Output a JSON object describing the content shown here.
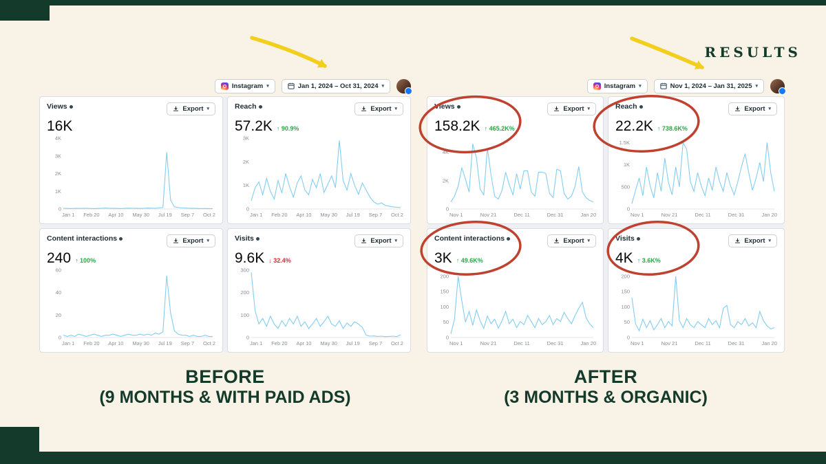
{
  "results_label": "RESULTS",
  "ui": {
    "export_label": "Export"
  },
  "colors": {
    "dark_green": "#143a2b",
    "cream": "#f8f3e6",
    "yellow_arrow": "#f2cf1d",
    "red_circle": "#bf4130",
    "chart_line": "#83cdf0",
    "delta_green": "#31a24c",
    "delta_red": "#e0243c"
  },
  "captions": {
    "before_title": "BEFORE",
    "before_subtitle": "(9 MONTHS & WITH PAID ADS)",
    "after_title": "AFTER",
    "after_subtitle": "(3 MONTHS & ORGANIC)"
  },
  "panels": [
    {
      "name": "before",
      "source": "Instagram",
      "date_range": "Jan 1, 2024 – Oct 31, 2024",
      "cards": [
        {
          "title": "Views",
          "value": "16K",
          "delta": "",
          "delta_color": "#31a24c"
        },
        {
          "title": "Reach",
          "value": "57.2K",
          "delta": "↑ 90.9%",
          "delta_color": "#31a24c"
        },
        {
          "title": "Content interactions",
          "value": "240",
          "delta": "↑ 100%",
          "delta_color": "#31a24c"
        },
        {
          "title": "Visits",
          "value": "9.6K",
          "delta": "↓ 32.4%",
          "delta_color": "#e0243c"
        }
      ]
    },
    {
      "name": "after",
      "source": "Instagram",
      "date_range": "Nov 1, 2024 – Jan 31, 2025",
      "cards": [
        {
          "title": "Views",
          "value": "158.2K",
          "delta": "↑ 465.2K%",
          "delta_color": "#31a24c"
        },
        {
          "title": "Reach",
          "value": "22.2K",
          "delta": "↑ 738.6K%",
          "delta_color": "#31a24c"
        },
        {
          "title": "Content interactions",
          "value": "3K",
          "delta": "↑ 49.6K%",
          "delta_color": "#31a24c"
        },
        {
          "title": "Visits",
          "value": "4K",
          "delta": "↑ 3.6K%",
          "delta_color": "#31a24c"
        }
      ]
    }
  ],
  "chart_data": [
    {
      "type": "line",
      "title": "Views (before)",
      "ylim": [
        0,
        4000
      ],
      "ymax": 4000,
      "yticks": [
        {
          "label": "0",
          "value": 0
        },
        {
          "label": "1K",
          "value": 1000
        },
        {
          "label": "2K",
          "value": 2000
        },
        {
          "label": "3K",
          "value": 3000
        },
        {
          "label": "4K",
          "value": 4000
        }
      ],
      "xticks": [
        "Jan 1",
        "Feb 20",
        "Apr 10",
        "May 30",
        "Jul 19",
        "Sep 7",
        "Oct 2"
      ],
      "values": [
        40,
        30,
        25,
        35,
        30,
        40,
        35,
        30,
        25,
        30,
        40,
        50,
        40,
        35,
        30,
        25,
        35,
        45,
        40,
        35,
        30,
        40,
        50,
        45,
        40,
        60,
        80,
        3200,
        500,
        120,
        80,
        60,
        50,
        40,
        35,
        30,
        25,
        30,
        25,
        20
      ]
    },
    {
      "type": "line",
      "title": "Reach (before)",
      "ylim": [
        0,
        3000
      ],
      "ymax": 3000,
      "yticks": [
        {
          "label": "0",
          "value": 0
        },
        {
          "label": "1K",
          "value": 1000
        },
        {
          "label": "2K",
          "value": 2000
        },
        {
          "label": "3K",
          "value": 3000
        }
      ],
      "xticks": [
        "Jan 1",
        "Feb 20",
        "Apr 10",
        "May 30",
        "Jul 19",
        "Sep 7",
        "Oct 2"
      ],
      "values": [
        350,
        900,
        1150,
        600,
        1300,
        750,
        420,
        1200,
        680,
        1500,
        950,
        500,
        1100,
        1400,
        800,
        600,
        1250,
        900,
        1500,
        700,
        1050,
        1400,
        900,
        2900,
        1200,
        800,
        1500,
        1000,
        620,
        1100,
        800,
        500,
        300,
        200,
        260,
        150,
        120,
        90,
        70,
        60
      ]
    },
    {
      "type": "line",
      "title": "Content interactions (before)",
      "ylim": [
        0,
        60
      ],
      "ymax": 60,
      "yticks": [
        {
          "label": "0",
          "value": 0
        },
        {
          "label": "20",
          "value": 20
        },
        {
          "label": "40",
          "value": 40
        },
        {
          "label": "60",
          "value": 60
        }
      ],
      "xticks": [
        "Jan 1",
        "Feb 20",
        "Apr 10",
        "May 30",
        "Jul 19",
        "Sep 7",
        "Oct 2"
      ],
      "values": [
        2,
        1,
        2,
        1,
        3,
        2,
        1,
        2,
        3,
        2,
        1,
        2,
        2,
        3,
        2,
        1,
        2,
        3,
        2,
        2,
        3,
        2,
        3,
        2,
        4,
        3,
        5,
        55,
        22,
        6,
        3,
        2,
        2,
        1,
        2,
        1,
        1,
        2,
        1,
        1
      ]
    },
    {
      "type": "line",
      "title": "Visits (before)",
      "ylim": [
        0,
        300
      ],
      "ymax": 300,
      "yticks": [
        {
          "label": "0",
          "value": 0
        },
        {
          "label": "100",
          "value": 100
        },
        {
          "label": "200",
          "value": 200
        },
        {
          "label": "300",
          "value": 300
        }
      ],
      "xticks": [
        "Jan 1",
        "Feb 20",
        "Apr 10",
        "May 30",
        "Jul 19",
        "Sep 7",
        "Oct 2"
      ],
      "values": [
        290,
        120,
        60,
        85,
        50,
        95,
        60,
        40,
        75,
        50,
        85,
        60,
        95,
        50,
        70,
        40,
        60,
        85,
        50,
        70,
        95,
        60,
        50,
        75,
        40,
        65,
        50,
        70,
        60,
        45,
        10,
        6,
        7,
        5,
        6,
        4,
        5,
        6,
        4,
        12
      ]
    },
    {
      "type": "line",
      "title": "Views (after)",
      "ylim": [
        0,
        5000
      ],
      "ymax": 5000,
      "yticks": [
        {
          "label": "0",
          "value": 0
        },
        {
          "label": "2K",
          "value": 2000
        },
        {
          "label": "4K",
          "value": 4000
        }
      ],
      "xticks": [
        "Nov 1",
        "Nov 21",
        "Dec 11",
        "Dec 31",
        "Jan 20"
      ],
      "values": [
        500,
        900,
        1600,
        2900,
        2100,
        1200,
        4600,
        3600,
        1400,
        1000,
        4300,
        2400,
        900,
        700,
        1300,
        2600,
        1700,
        1000,
        2500,
        1400,
        2700,
        2700,
        1200,
        900,
        2600,
        2600,
        2500,
        1100,
        800,
        2800,
        2700,
        1100,
        700,
        900,
        1600,
        3000,
        1200,
        800,
        600,
        500
      ]
    },
    {
      "type": "line",
      "title": "Reach (after)",
      "ylim": [
        0,
        1600
      ],
      "ymax": 1600,
      "yticks": [
        {
          "label": "0",
          "value": 0
        },
        {
          "label": "500",
          "value": 500
        },
        {
          "label": "1K",
          "value": 1000
        },
        {
          "label": "1.5K",
          "value": 1500
        }
      ],
      "xticks": [
        "Nov 1",
        "Nov 21",
        "Dec 11",
        "Dec 31",
        "Jan 20"
      ],
      "values": [
        120,
        420,
        700,
        300,
        950,
        520,
        250,
        820,
        400,
        1150,
        600,
        320,
        950,
        500,
        1500,
        1350,
        620,
        400,
        820,
        520,
        300,
        700,
        420,
        950,
        620,
        400,
        820,
        520,
        320,
        620,
        950,
        1250,
        820,
        420,
        700,
        1050,
        620,
        1500,
        820,
        400
      ]
    },
    {
      "type": "line",
      "title": "Content interactions (after)",
      "ylim": [
        0,
        220
      ],
      "ymax": 220,
      "yticks": [
        {
          "label": "0",
          "value": 0
        },
        {
          "label": "50",
          "value": 50
        },
        {
          "label": "100",
          "value": 100
        },
        {
          "label": "150",
          "value": 150
        },
        {
          "label": "200",
          "value": 200
        }
      ],
      "xticks": [
        "Nov 1",
        "Nov 21",
        "Dec 11",
        "Dec 31",
        "Jan 20"
      ],
      "values": [
        12,
        60,
        200,
        120,
        50,
        85,
        40,
        90,
        55,
        30,
        70,
        45,
        60,
        30,
        55,
        85,
        45,
        60,
        32,
        52,
        42,
        72,
        52,
        32,
        62,
        42,
        52,
        72,
        42,
        62,
        52,
        82,
        62,
        45,
        72,
        95,
        115,
        65,
        45,
        32
      ]
    },
    {
      "type": "line",
      "title": "Visits (after)",
      "ylim": [
        0,
        220
      ],
      "ymax": 220,
      "yticks": [
        {
          "label": "0",
          "value": 0
        },
        {
          "label": "50",
          "value": 50
        },
        {
          "label": "100",
          "value": 100
        },
        {
          "label": "150",
          "value": 150
        },
        {
          "label": "200",
          "value": 200
        }
      ],
      "xticks": [
        "Nov 1",
        "Nov 21",
        "Dec 11",
        "Dec 31",
        "Jan 20"
      ],
      "values": [
        130,
        45,
        22,
        60,
        32,
        55,
        25,
        42,
        62,
        32,
        52,
        38,
        200,
        55,
        32,
        62,
        42,
        32,
        52,
        42,
        32,
        62,
        42,
        55,
        32,
        95,
        105,
        42,
        32,
        52,
        42,
        62,
        38,
        48,
        32,
        85,
        55,
        38,
        28,
        32
      ]
    }
  ]
}
